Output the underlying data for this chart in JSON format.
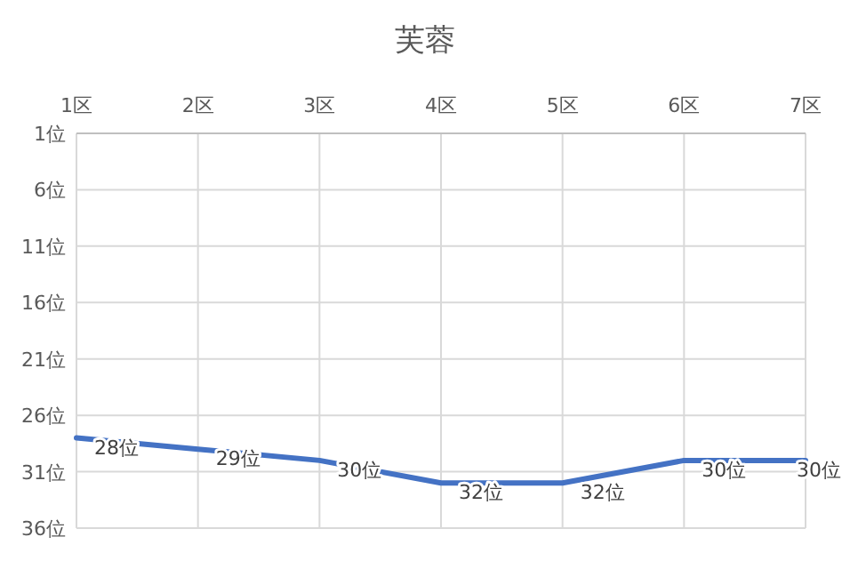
{
  "chart_data": {
    "type": "line",
    "title": "芙蓉",
    "categories": [
      "1区",
      "2区",
      "3区",
      "4区",
      "5区",
      "6区",
      "7区"
    ],
    "series": [
      {
        "color": "#4472c4",
        "values": [
          28,
          29,
          30,
          32,
          32,
          30,
          30
        ],
        "value_labels": [
          "28位",
          "29位",
          "30位",
          "32位",
          "32位",
          "30位",
          "30位"
        ]
      }
    ],
    "ylim": [
      36,
      1
    ],
    "yticks": [
      {
        "value": 1,
        "label": "1位"
      },
      {
        "value": 6,
        "label": "6位"
      },
      {
        "value": 11,
        "label": "11位"
      },
      {
        "value": 16,
        "label": "16位"
      },
      {
        "value": 21,
        "label": "21位"
      },
      {
        "value": 26,
        "label": "26位"
      },
      {
        "value": 31,
        "label": "31位"
      },
      {
        "value": 36,
        "label": "36位"
      }
    ],
    "grid": true
  }
}
